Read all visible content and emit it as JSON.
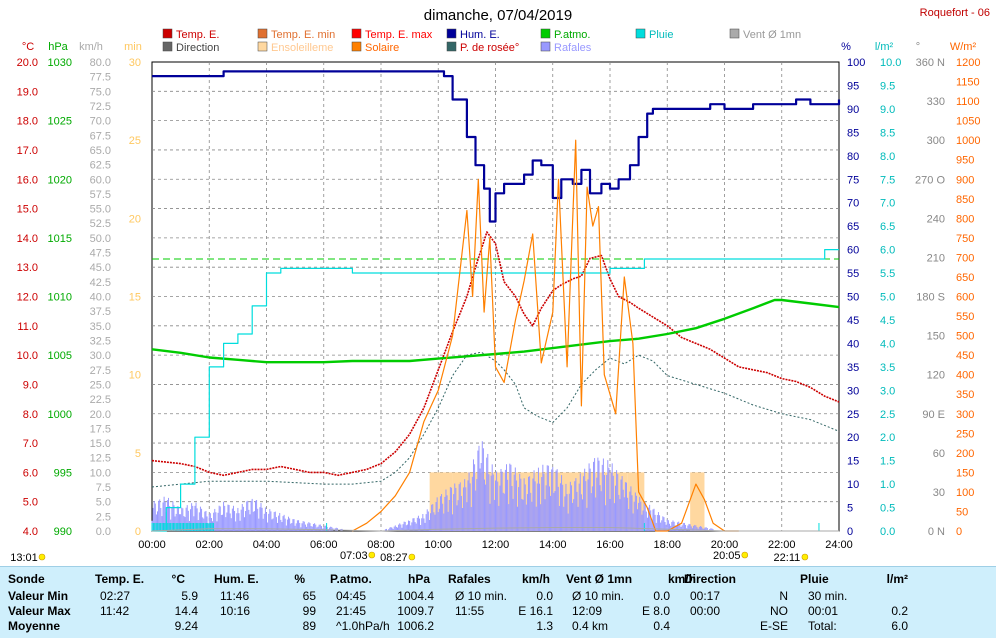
{
  "header": {
    "title": "dimanche, 07/04/2019",
    "station": "Roquefort - 06"
  },
  "legend": [
    {
      "label": "Temp. E.",
      "color": "#cc0000",
      "text_color": "#cc0000"
    },
    {
      "label": "Temp. E. min",
      "color": "#e07030",
      "text_color": "#e07030"
    },
    {
      "label": "Temp. E. max",
      "color": "#ff0000",
      "text_color": "#ff0000"
    },
    {
      "label": "Hum. E.",
      "color": "#000099",
      "text_color": "#000099"
    },
    {
      "label": "P.atmo.",
      "color": "#00cc00",
      "text_color": "#00aa00"
    },
    {
      "label": "Pluie",
      "color": "#00dddd",
      "text_color": "#00bbbb"
    },
    {
      "label": "Vent Ø 1mn",
      "color": "#aaaaaa",
      "text_color": "#999999"
    },
    {
      "label": "Direction",
      "color": "#666666",
      "text_color": "#444444"
    },
    {
      "label": "Ensoleilleme",
      "color": "#ffd8a0",
      "text_color": "#ffc890"
    },
    {
      "label": "Solaire",
      "color": "#ff8000",
      "text_color": "#ff6600"
    },
    {
      "label": "P. de rosée°",
      "color": "#336666",
      "text_color": "#cc0000"
    },
    {
      "label": "Rafales",
      "color": "#9999ff",
      "text_color": "#9999ff"
    }
  ],
  "axes": {
    "left_units": [
      {
        "text": "°C",
        "color": "#cc0000"
      },
      {
        "text": "hPa",
        "color": "#00aa00"
      },
      {
        "text": "km/h",
        "color": "#aaaaaa"
      },
      {
        "text": "min",
        "color": "#ffc860"
      }
    ],
    "right_units": [
      {
        "text": "%",
        "color": "#000099"
      },
      {
        "text": "l/m²",
        "color": "#00bbbb"
      },
      {
        "text": "°",
        "color": "#888888"
      },
      {
        "text": "W/m²",
        "color": "#ff6600"
      }
    ],
    "temp_ticks": [
      "20.0",
      "19.0",
      "18.0",
      "17.0",
      "16.0",
      "15.0",
      "14.0",
      "13.0",
      "12.0",
      "11.0",
      "10.0",
      "9.0",
      "8.0",
      "7.0",
      "6.0",
      "5.0",
      "4.0"
    ],
    "hpa_ticks": [
      "1030",
      "1025",
      "1020",
      "1015",
      "1010",
      "1005",
      "1000",
      "995",
      "990"
    ],
    "kmh_ticks": [
      "80.0",
      "77.5",
      "75.0",
      "72.5",
      "70.0",
      "67.5",
      "65.0",
      "62.5",
      "60.0",
      "57.5",
      "55.0",
      "52.5",
      "50.0",
      "47.5",
      "45.0",
      "42.5",
      "40.0",
      "37.5",
      "35.0",
      "32.5",
      "30.0",
      "27.5",
      "25.0",
      "22.5",
      "20.0",
      "17.5",
      "15.0",
      "12.5",
      "10.0",
      "7.5",
      "5.0",
      "2.5",
      "0.0"
    ],
    "min_ticks": [
      "30",
      "25",
      "20",
      "15",
      "10",
      "5",
      "0"
    ],
    "hum_ticks": [
      "100",
      "95",
      "90",
      "85",
      "80",
      "75",
      "70",
      "65",
      "60",
      "55",
      "50",
      "45",
      "40",
      "35",
      "30",
      "25",
      "20",
      "15",
      "10",
      "5",
      "0"
    ],
    "rain_ticks": [
      "10.0",
      "9.5",
      "9.0",
      "8.5",
      "8.0",
      "7.5",
      "7.0",
      "6.5",
      "6.0",
      "5.5",
      "5.0",
      "4.5",
      "4.0",
      "3.5",
      "3.0",
      "2.5",
      "2.0",
      "1.5",
      "1.0",
      "0.5",
      "0.0"
    ],
    "dir_ticks": [
      "360 N",
      "330",
      "300",
      "270 O",
      "240",
      "210",
      "180 S",
      "150",
      "120",
      "90 E",
      "60",
      "30",
      "0 N"
    ],
    "wm2_ticks": [
      "1200",
      "1150",
      "1100",
      "1050",
      "1000",
      "950",
      "900",
      "850",
      "800",
      "750",
      "700",
      "650",
      "600",
      "550",
      "500",
      "450",
      "400",
      "350",
      "300",
      "250",
      "200",
      "150",
      "100",
      "50",
      "0"
    ],
    "x_ticks": [
      "00:00",
      "02:00",
      "04:00",
      "06:00",
      "08:00",
      "10:00",
      "12:00",
      "14:00",
      "16:00",
      "18:00",
      "20:00",
      "22:00",
      "24:00"
    ]
  },
  "sun_markers": [
    {
      "time": "13:01",
      "hour": -9.6
    },
    {
      "time": "07:03",
      "hour": 7.05
    },
    {
      "time": "08:27",
      "hour": 8.45
    },
    {
      "time": "20:05",
      "hour": 20.08
    },
    {
      "time": "22:11",
      "hour": 22.18
    }
  ],
  "chart_data": {
    "type": "line",
    "x_unit": "hour",
    "xlim": [
      0,
      24
    ],
    "series": [
      {
        "name": "Temp. E.",
        "unit": "°C",
        "color": "#cc0000",
        "x": [
          0,
          1,
          1.5,
          2,
          2.5,
          3,
          3.5,
          4,
          4.5,
          5,
          5.5,
          6,
          6.5,
          7,
          7.5,
          8,
          8.5,
          9,
          9.5,
          10,
          10.5,
          11,
          11.3,
          11.7,
          12,
          12.3,
          12.7,
          13,
          13.3,
          13.6,
          14,
          14.3,
          14.7,
          15,
          15.3,
          15.7,
          16,
          16.3,
          16.7,
          17,
          17.5,
          18,
          18.5,
          19,
          19.5,
          20,
          20.5,
          21,
          21.5,
          22,
          22.5,
          23,
          23.5,
          24
        ],
        "y": [
          6.4,
          6.3,
          6.2,
          6.0,
          5.9,
          6.0,
          6.1,
          6.1,
          6.2,
          6.1,
          6.0,
          6.0,
          5.9,
          6.0,
          6.1,
          6.3,
          6.7,
          7.3,
          8.2,
          9.5,
          10.8,
          12.0,
          13.0,
          14.2,
          13.8,
          12.5,
          12.0,
          11.4,
          11.0,
          11.6,
          12.2,
          12.4,
          12.6,
          12.7,
          13.3,
          13.4,
          12.6,
          12.0,
          11.8,
          11.6,
          11.3,
          11.0,
          10.6,
          10.4,
          10.2,
          9.9,
          9.6,
          9.5,
          9.4,
          9.2,
          9.1,
          8.9,
          8.6,
          8.4
        ]
      },
      {
        "name": "P. de rosée°",
        "unit": "°C",
        "color": "#336666",
        "x": [
          0,
          2,
          4,
          6,
          7,
          8,
          8.5,
          9,
          9.5,
          10,
          10.5,
          11,
          11.5,
          12,
          12.3,
          12.7,
          13,
          13.5,
          14,
          14.5,
          15,
          15.5,
          16,
          16.5,
          17,
          17.5,
          18,
          19,
          20,
          21,
          22,
          23,
          24
        ],
        "y": [
          5.5,
          5.7,
          5.7,
          5.6,
          5.6,
          5.7,
          6.0,
          6.5,
          7.3,
          8.2,
          9.3,
          10.0,
          10.1,
          9.8,
          9.5,
          9.0,
          8.2,
          7.9,
          7.7,
          8.2,
          9.0,
          9.5,
          9.9,
          9.7,
          10.0,
          9.8,
          9.3,
          9.0,
          8.7,
          8.3,
          8.0,
          7.8,
          7.4
        ]
      },
      {
        "name": "Hum. E.",
        "unit": "%",
        "color": "#000099",
        "x": [
          0,
          2,
          2.5,
          3,
          3.5,
          4,
          5,
          6,
          8,
          9,
          10,
          10.2,
          10.5,
          11,
          11.3,
          11.6,
          11.8,
          12,
          12.3,
          12.7,
          13,
          13.3,
          13.6,
          14,
          14.3,
          14.7,
          15,
          15.3,
          15.7,
          16,
          16.3,
          16.7,
          17,
          17.3,
          17.5,
          18,
          18.5,
          19,
          19.5,
          20,
          20.5,
          21,
          21.5,
          22,
          22.5,
          23,
          23.5,
          24
        ],
        "y": [
          97,
          97,
          98,
          98,
          98,
          98,
          98,
          98,
          98,
          98,
          98,
          97,
          92,
          84,
          78,
          73,
          66,
          72,
          74,
          74,
          76,
          79,
          78,
          71,
          75,
          74,
          77,
          72,
          74,
          73,
          75,
          78,
          84,
          89,
          90,
          90,
          90,
          90,
          91,
          90,
          90,
          91,
          91,
          91,
          92,
          91,
          91,
          92
        ]
      },
      {
        "name": "P.atmo.",
        "unit": "hPa",
        "color": "#00cc00",
        "x": [
          0,
          1,
          2,
          3,
          4,
          5,
          6,
          7,
          8,
          9,
          10,
          11,
          12,
          13,
          14,
          15,
          16,
          17,
          18,
          19,
          20,
          21,
          21.75,
          22,
          23,
          24
        ],
        "y": [
          1005.5,
          1005.2,
          1004.8,
          1004.6,
          1004.4,
          1004.4,
          1004.4,
          1004.5,
          1004.5,
          1004.5,
          1004.7,
          1004.9,
          1005.1,
          1005.3,
          1005.6,
          1005.9,
          1006.2,
          1006.4,
          1006.8,
          1007.3,
          1008.1,
          1009.0,
          1009.7,
          1009.7,
          1009.4,
          1009.1
        ]
      },
      {
        "name": "Pluie",
        "unit": "l/m²",
        "color": "#00dddd",
        "x": [
          0,
          0.5,
          1,
          1.5,
          2,
          2.5,
          3,
          3.5,
          4,
          4.5,
          5,
          6,
          6.5,
          7,
          8,
          9,
          10,
          11,
          12,
          13,
          14,
          15,
          16,
          17,
          17.2,
          18,
          19,
          20,
          21,
          22,
          23,
          23.5,
          24
        ],
        "y": [
          0,
          0.5,
          1.0,
          2.0,
          3.5,
          4.0,
          4.2,
          4.8,
          5.5,
          5.6,
          5.6,
          5.6,
          5.6,
          5.5,
          5.5,
          5.5,
          5.5,
          5.5,
          5.5,
          5.5,
          5.5,
          5.5,
          5.6,
          5.6,
          5.8,
          5.8,
          5.8,
          5.8,
          5.8,
          5.8,
          5.8,
          6.0,
          6.0
        ]
      },
      {
        "name": "Solaire",
        "unit": "W/m²",
        "color": "#ff8000",
        "x": [
          7,
          7.5,
          8,
          8.5,
          9,
          9.5,
          10,
          10.5,
          11,
          11.2,
          11.4,
          11.6,
          11.8,
          12,
          12.3,
          12.7,
          13,
          13.3,
          13.6,
          14,
          14.2,
          14.5,
          14.8,
          15,
          15.2,
          15.4,
          15.6,
          15.8,
          16,
          16.2,
          16.5,
          16.8,
          17,
          17.3,
          17.6,
          18,
          18.5,
          19,
          19.3,
          19.6,
          20,
          20.5
        ],
        "y": [
          0,
          20,
          50,
          90,
          150,
          280,
          360,
          500,
          820,
          600,
          900,
          560,
          750,
          420,
          380,
          540,
          640,
          760,
          430,
          560,
          900,
          420,
          1000,
          320,
          880,
          780,
          830,
          400,
          350,
          300,
          650,
          480,
          100,
          60,
          0,
          0,
          20,
          120,
          80,
          20,
          0,
          0
        ]
      },
      {
        "name": "Rafales",
        "unit": "km/h",
        "color": "#9999ff",
        "x": [
          0,
          0.5,
          1,
          1.5,
          2,
          2.5,
          3,
          3.5,
          4,
          4.5,
          5,
          6,
          7,
          8,
          8.5,
          9,
          9.5,
          10,
          10.5,
          11,
          11.5,
          12,
          12.5,
          13,
          13.5,
          14,
          14.5,
          15,
          15.5,
          16,
          16.5,
          17,
          17.5,
          18,
          19,
          20,
          21,
          22,
          23,
          24
        ],
        "y": [
          5,
          6,
          4,
          5,
          3,
          5,
          4,
          6,
          4,
          3,
          2,
          1,
          0,
          0,
          1,
          2,
          3,
          6,
          8,
          9,
          16.1,
          10,
          12,
          9,
          11,
          12,
          8,
          10,
          13,
          12,
          9,
          6,
          4,
          2,
          1,
          0,
          0,
          0,
          0,
          0
        ]
      },
      {
        "name": "Vent Ø 1mn",
        "unit": "km/h",
        "color": "#aaaaaa",
        "x": [
          0,
          2,
          4,
          6,
          8,
          10,
          12,
          14,
          16,
          18,
          20,
          22,
          24
        ],
        "y": [
          0,
          0.4,
          0.4,
          0.2,
          0,
          0.3,
          0.5,
          0.6,
          0.6,
          0.3,
          0,
          0,
          0
        ]
      }
    ],
    "ylim_temp": [
      4,
      20
    ],
    "ylim_hum": [
      0,
      100
    ],
    "ylim_hpa": [
      990,
      1030
    ],
    "ylim_rain": [
      0,
      10
    ],
    "ylim_wm2": [
      0,
      1200
    ],
    "ylim_kmh": [
      0,
      80
    ]
  },
  "stats": {
    "headers": [
      "Sonde",
      "Temp. E.",
      "°C",
      "Hum. E.",
      "%",
      "P.atmo.",
      "hPa",
      "Rafales",
      "km/h",
      "Vent Ø 1mn",
      "km/h",
      "Direction",
      "",
      "Pluie",
      "l/m²"
    ],
    "rows": [
      {
        "label": "Valeur Min",
        "t_time": "02:27",
        "t_val": "5.9",
        "h_time": "11:46",
        "h_val": "65",
        "p_time": "04:45",
        "p_val": "1004.4",
        "g_time": "Ø 10 min.",
        "g_val": "0.0",
        "w_time": "Ø 10 min.",
        "w_val": "0.0",
        "d_time": "00:17",
        "d_val": "N",
        "r_time": "30 min.",
        "r_val": ""
      },
      {
        "label": "Valeur Max",
        "t_time": "11:42",
        "t_val": "14.4",
        "h_time": "10:16",
        "h_val": "99",
        "p_time": "21:45",
        "p_val": "1009.7",
        "g_time": "11:55",
        "g_val": "E 16.1",
        "w_time": "12:09",
        "w_val": "E 8.0",
        "d_time": "00:00",
        "d_val": "NO",
        "r_time": "00:01",
        "r_val": "0.2"
      },
      {
        "label": "Moyenne",
        "t_time": "",
        "t_val": "9.24",
        "h_time": "",
        "h_val": "89",
        "p_time": "^1.0hPa/h",
        "p_val": "1006.2",
        "g_time": "",
        "g_val": "1.3",
        "w_time": "0.4 km",
        "w_val": "0.4",
        "d_time": "",
        "d_val": "E-SE",
        "r_time": "Total:",
        "r_val": "6.0"
      }
    ]
  }
}
